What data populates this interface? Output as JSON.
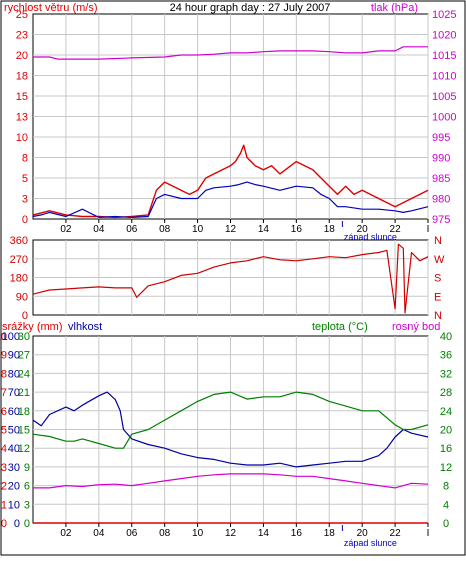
{
  "header": {
    "title": "24 hour graph day : 27 July 2007",
    "left_label": "rychlost větru (m/s)",
    "right_label": "tlak (hPa)"
  },
  "colors": {
    "wind": "#e00000",
    "wind_avg": "#0000c0",
    "pressure": "#d000d0",
    "direction": "#d00000",
    "precip": "#e00000",
    "humidity": "#0000a0",
    "temperature": "#008000",
    "dewpoint": "#d000d0",
    "grid": "#c8c8c8"
  },
  "panel1": {
    "wind_ticks": [
      "0",
      "3",
      "5",
      "8",
      "10",
      "13",
      "15",
      "18",
      "20",
      "23",
      "25"
    ],
    "pressure_ticks": [
      "975",
      "980",
      "985",
      "990",
      "995",
      "1000",
      "1005",
      "1010",
      "1015",
      "1020",
      "1025"
    ],
    "time_ticks": [
      "02",
      "04",
      "06",
      "08",
      "10",
      "12",
      "14",
      "16",
      "18",
      "20",
      "22",
      "I"
    ],
    "sunset_label": "západ slunce"
  },
  "panel2": {
    "direction_ticks": [
      "360",
      "270",
      "180",
      "90",
      "0"
    ],
    "compass_labels": [
      "N",
      "W",
      "S",
      "E",
      "N"
    ]
  },
  "panel3": {
    "precip_label": "srážky (mm)",
    "humidity_label": "vlhkost",
    "temperature_label": "teplota (°C)",
    "dewpoint_label": "rosný bod",
    "precip_ticks": [
      "0",
      "1",
      "2",
      "3",
      "4",
      "5",
      "6",
      "7",
      "8",
      "9",
      "10"
    ],
    "humidity_ticks": [
      "0",
      "10",
      "20",
      "30",
      "40",
      "50",
      "60",
      "70",
      "80",
      "90",
      "100"
    ],
    "temp_left_ticks": [
      "0",
      "3",
      "6",
      "9",
      "12",
      "15",
      "18",
      "21",
      "24",
      "27",
      "30"
    ],
    "temp_right_ticks": [
      "0",
      "4",
      "8",
      "12",
      "16",
      "20",
      "24",
      "28",
      "32",
      "36",
      "40"
    ],
    "time_ticks": [
      "02",
      "04",
      "06",
      "08",
      "10",
      "12",
      "14",
      "16",
      "18",
      "20",
      "22",
      "I"
    ],
    "sunset_label": "západ slunce"
  },
  "chart_data": [
    {
      "type": "line",
      "x_unit": "hour",
      "xlim": [
        0,
        24
      ],
      "ylim_left": [
        0,
        25
      ],
      "ylim_right": [
        975,
        1025
      ],
      "series": [
        {
          "name": "rychlost větru (m/s)",
          "axis": "left",
          "x": [
            0,
            1,
            2,
            3,
            4,
            5,
            6,
            7,
            7.5,
            8,
            9,
            9.5,
            10,
            10.5,
            11,
            11.5,
            12,
            12.3,
            12.6,
            12.8,
            13,
            13.5,
            14,
            14.5,
            15,
            16,
            17,
            17.5,
            18,
            18.5,
            19,
            19.5,
            20,
            20.5,
            21,
            21.5,
            22,
            22.5,
            23,
            23.5,
            24
          ],
          "y": [
            0.5,
            1,
            0.5,
            0.3,
            0.3,
            0.2,
            0.3,
            0.5,
            3.5,
            4.5,
            3.5,
            3,
            3.5,
            5,
            5.5,
            6,
            6.5,
            7,
            8,
            9,
            7.5,
            6.5,
            6,
            6.5,
            5.5,
            7,
            6,
            5,
            4,
            3,
            4,
            3,
            3.5,
            3,
            2.5,
            2,
            1.5,
            2,
            2.5,
            3,
            3.5
          ]
        },
        {
          "name": "",
          "axis": "left",
          "x": [
            0,
            0.5,
            1,
            2,
            3,
            4,
            5,
            6,
            7,
            7.5,
            8,
            9,
            10,
            10.5,
            11,
            12,
            12.5,
            13,
            13.5,
            14,
            15,
            16,
            17,
            17.5,
            18,
            18.5,
            19,
            20,
            21,
            22,
            22.5,
            23,
            24
          ],
          "y": [
            0.3,
            0.5,
            0.8,
            0.3,
            1.2,
            0.2,
            0.3,
            0.2,
            0.3,
            2.5,
            3,
            2.5,
            2.5,
            3.5,
            3.8,
            4,
            4.2,
            4.5,
            4.2,
            4,
            3.5,
            4,
            3.8,
            3,
            2.5,
            1.5,
            1.5,
            1.2,
            1.2,
            1,
            0.8,
            1,
            1.5
          ]
        },
        {
          "name": "tlak (hPa)",
          "axis": "right",
          "x": [
            0,
            1,
            1.5,
            4,
            6,
            8,
            9,
            10,
            11,
            12,
            13,
            14,
            15,
            16,
            17,
            18,
            19,
            20,
            21,
            22,
            22.5,
            23,
            24
          ],
          "y": [
            1014.5,
            1014.5,
            1014,
            1014,
            1014.3,
            1014.5,
            1015,
            1015,
            1015.2,
            1015.5,
            1015.5,
            1015.8,
            1016,
            1016,
            1016,
            1015.8,
            1015.5,
            1015.5,
            1016,
            1016,
            1017,
            1017,
            1017
          ]
        }
      ]
    },
    {
      "type": "line",
      "x_unit": "hour",
      "xlim": [
        0,
        24
      ],
      "ylim": [
        0,
        360
      ],
      "series": [
        {
          "name": "",
          "x": [
            0,
            0.5,
            1,
            2,
            3,
            4,
            5,
            6,
            6.3,
            7,
            8,
            9,
            10,
            11,
            12,
            13,
            14,
            15,
            16,
            17,
            18,
            19,
            20,
            21,
            21.5,
            22,
            22.2,
            22.5,
            22.6,
            23,
            23.5,
            24
          ],
          "y": [
            100,
            110,
            120,
            125,
            130,
            135,
            130,
            130,
            85,
            140,
            160,
            190,
            200,
            230,
            250,
            260,
            280,
            265,
            260,
            270,
            280,
            275,
            290,
            300,
            310,
            30,
            340,
            320,
            10,
            300,
            260,
            280
          ]
        }
      ]
    },
    {
      "type": "line",
      "x_unit": "hour",
      "xlim": [
        0,
        24
      ],
      "ylim_left": [
        0,
        100
      ],
      "ylim_right": [
        0,
        40
      ],
      "series": [
        {
          "name": "srážky (mm)",
          "axis": "left",
          "x": [
            0,
            24
          ],
          "y": [
            0,
            0
          ]
        },
        {
          "name": "vlhkost",
          "axis": "left",
          "x": [
            0,
            0.5,
            1,
            2,
            2.5,
            3,
            4,
            4.5,
            5,
            5.3,
            5.5,
            6,
            7,
            8,
            9,
            10,
            11,
            12,
            13,
            14,
            15,
            16,
            17,
            18,
            19,
            20,
            21,
            21.5,
            22,
            22.5,
            23,
            24
          ],
          "y": [
            55,
            52,
            58,
            62,
            60,
            63,
            68,
            70,
            66,
            60,
            50,
            45,
            42,
            40,
            37,
            35,
            34,
            32,
            31,
            31,
            32,
            30,
            31,
            32,
            33,
            33,
            36,
            40,
            46,
            50,
            48,
            46
          ]
        },
        {
          "name": "teplota (°C)",
          "axis": "right",
          "x": [
            0,
            1,
            2,
            2.5,
            3,
            4,
            5,
            5.5,
            6,
            7,
            8,
            9,
            10,
            11,
            12,
            13,
            14,
            15,
            16,
            17,
            18,
            19,
            20,
            21,
            22,
            22.5,
            23,
            24
          ],
          "y": [
            19,
            18.5,
            17.5,
            17.5,
            18,
            17,
            16,
            16,
            19,
            20,
            22,
            24,
            26,
            27.5,
            28,
            26.5,
            27,
            27,
            28,
            27.5,
            26,
            25,
            24,
            24,
            21,
            20,
            20,
            21
          ]
        },
        {
          "name": "rosný bod",
          "axis": "right",
          "x": [
            0,
            1,
            2,
            3,
            4,
            5,
            6,
            7,
            8,
            9,
            10,
            11,
            12,
            13,
            14,
            15,
            16,
            17,
            18,
            19,
            20,
            21,
            22,
            22.5,
            23,
            24
          ],
          "y": [
            7.5,
            7.5,
            8,
            7.8,
            8.2,
            8.3,
            8,
            8.5,
            9,
            9.5,
            10,
            10.3,
            10.5,
            10.5,
            10.5,
            10.3,
            10,
            10,
            9.5,
            9,
            8.5,
            8,
            7.5,
            8,
            8.5,
            8.3
          ]
        }
      ]
    }
  ]
}
